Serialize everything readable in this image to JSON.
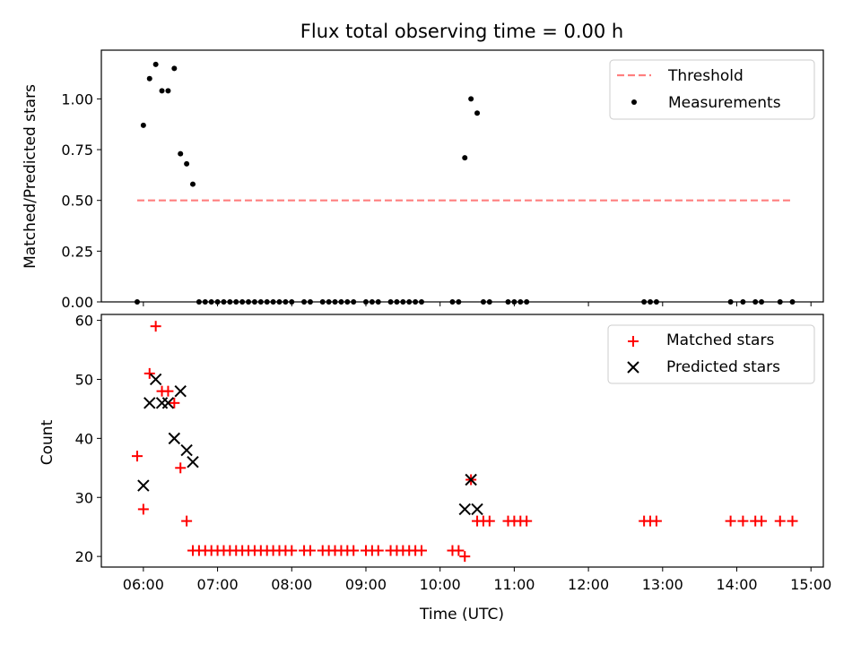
{
  "chart_data": [
    {
      "type": "scatter",
      "title": "Flux total observing time = 0.00 h",
      "xlabel": "",
      "ylabel": "Matched/Predicted stars",
      "xlim": [
        "05:26",
        "15:10"
      ],
      "ylim": [
        0,
        1.24
      ],
      "yticks": [
        0.0,
        0.25,
        0.5,
        0.75,
        1.0
      ],
      "ytick_labels": [
        "0.00",
        "0.25",
        "0.50",
        "0.75",
        "1.00"
      ],
      "legend_position": "top-right",
      "threshold": {
        "name": "Threshold",
        "y": 0.5,
        "x_range": [
          "05:55",
          "14:45"
        ],
        "color": "#ff7f7f",
        "style": "dashed"
      },
      "series": [
        {
          "name": "Measurements",
          "color": "#000000",
          "marker": "dot",
          "points": [
            [
              "05:55",
              0.0
            ],
            [
              "06:00",
              0.87
            ],
            [
              "06:05",
              1.1
            ],
            [
              "06:10",
              1.17
            ],
            [
              "06:15",
              1.04
            ],
            [
              "06:20",
              1.04
            ],
            [
              "06:25",
              1.15
            ],
            [
              "06:30",
              0.73
            ],
            [
              "06:35",
              0.68
            ],
            [
              "06:40",
              0.58
            ],
            [
              "06:45",
              0.0
            ],
            [
              "06:50",
              0.0
            ],
            [
              "06:55",
              0.0
            ],
            [
              "07:00",
              0.0
            ],
            [
              "07:05",
              0.0
            ],
            [
              "07:10",
              0.0
            ],
            [
              "07:15",
              0.0
            ],
            [
              "07:20",
              0.0
            ],
            [
              "07:25",
              0.0
            ],
            [
              "07:30",
              0.0
            ],
            [
              "07:35",
              0.0
            ],
            [
              "07:40",
              0.0
            ],
            [
              "07:45",
              0.0
            ],
            [
              "07:50",
              0.0
            ],
            [
              "07:55",
              0.0
            ],
            [
              "08:00",
              0.0
            ],
            [
              "08:10",
              0.0
            ],
            [
              "08:15",
              0.0
            ],
            [
              "08:25",
              0.0
            ],
            [
              "08:30",
              0.0
            ],
            [
              "08:35",
              0.0
            ],
            [
              "08:40",
              0.0
            ],
            [
              "08:45",
              0.0
            ],
            [
              "08:50",
              0.0
            ],
            [
              "09:00",
              0.0
            ],
            [
              "09:05",
              0.0
            ],
            [
              "09:10",
              0.0
            ],
            [
              "09:20",
              0.0
            ],
            [
              "09:25",
              0.0
            ],
            [
              "09:30",
              0.0
            ],
            [
              "09:35",
              0.0
            ],
            [
              "09:40",
              0.0
            ],
            [
              "09:45",
              0.0
            ],
            [
              "10:10",
              0.0
            ],
            [
              "10:15",
              0.0
            ],
            [
              "10:20",
              0.71
            ],
            [
              "10:25",
              1.0
            ],
            [
              "10:30",
              0.93
            ],
            [
              "10:35",
              0.0
            ],
            [
              "10:40",
              0.0
            ],
            [
              "10:55",
              0.0
            ],
            [
              "11:00",
              0.0
            ],
            [
              "11:05",
              0.0
            ],
            [
              "11:10",
              0.0
            ],
            [
              "12:45",
              0.0
            ],
            [
              "12:50",
              0.0
            ],
            [
              "12:55",
              0.0
            ],
            [
              "13:55",
              0.0
            ],
            [
              "14:05",
              0.0
            ],
            [
              "14:15",
              0.0
            ],
            [
              "14:20",
              0.0
            ],
            [
              "14:35",
              0.0
            ],
            [
              "14:45",
              0.0
            ]
          ]
        }
      ]
    },
    {
      "type": "scatter",
      "title": "",
      "xlabel": "Time (UTC)",
      "ylabel": "Count",
      "xlim": [
        "05:26",
        "15:10"
      ],
      "ylim": [
        18.2,
        61.0
      ],
      "yticks": [
        20,
        30,
        40,
        50,
        60
      ],
      "ytick_labels": [
        "20",
        "30",
        "40",
        "50",
        "60"
      ],
      "xticks": [
        "06:00",
        "07:00",
        "08:00",
        "09:00",
        "10:00",
        "11:00",
        "12:00",
        "13:00",
        "14:00",
        "15:00"
      ],
      "legend_position": "top-right",
      "series": [
        {
          "name": "Matched stars",
          "color": "#ff0000",
          "marker": "plus",
          "points": [
            [
              "05:55",
              37
            ],
            [
              "06:00",
              28
            ],
            [
              "06:05",
              51
            ],
            [
              "06:10",
              59
            ],
            [
              "06:15",
              48
            ],
            [
              "06:20",
              48
            ],
            [
              "06:25",
              46
            ],
            [
              "06:30",
              35
            ],
            [
              "06:35",
              26
            ],
            [
              "06:40",
              21
            ],
            [
              "06:45",
              21
            ],
            [
              "06:50",
              21
            ],
            [
              "06:55",
              21
            ],
            [
              "07:00",
              21
            ],
            [
              "07:05",
              21
            ],
            [
              "07:10",
              21
            ],
            [
              "07:15",
              21
            ],
            [
              "07:20",
              21
            ],
            [
              "07:25",
              21
            ],
            [
              "07:30",
              21
            ],
            [
              "07:35",
              21
            ],
            [
              "07:40",
              21
            ],
            [
              "07:45",
              21
            ],
            [
              "07:50",
              21
            ],
            [
              "07:55",
              21
            ],
            [
              "08:00",
              21
            ],
            [
              "08:10",
              21
            ],
            [
              "08:15",
              21
            ],
            [
              "08:25",
              21
            ],
            [
              "08:30",
              21
            ],
            [
              "08:35",
              21
            ],
            [
              "08:40",
              21
            ],
            [
              "08:45",
              21
            ],
            [
              "08:50",
              21
            ],
            [
              "09:00",
              21
            ],
            [
              "09:05",
              21
            ],
            [
              "09:10",
              21
            ],
            [
              "09:20",
              21
            ],
            [
              "09:25",
              21
            ],
            [
              "09:30",
              21
            ],
            [
              "09:35",
              21
            ],
            [
              "09:40",
              21
            ],
            [
              "09:45",
              21
            ],
            [
              "10:10",
              21
            ],
            [
              "10:15",
              21
            ],
            [
              "10:20",
              20
            ],
            [
              "10:25",
              33
            ],
            [
              "10:30",
              26
            ],
            [
              "10:35",
              26
            ],
            [
              "10:40",
              26
            ],
            [
              "10:55",
              26
            ],
            [
              "11:00",
              26
            ],
            [
              "11:05",
              26
            ],
            [
              "11:10",
              26
            ],
            [
              "12:45",
              26
            ],
            [
              "12:50",
              26
            ],
            [
              "12:55",
              26
            ],
            [
              "13:55",
              26
            ],
            [
              "14:05",
              26
            ],
            [
              "14:15",
              26
            ],
            [
              "14:20",
              26
            ],
            [
              "14:35",
              26
            ],
            [
              "14:45",
              26
            ]
          ]
        },
        {
          "name": "Predicted stars",
          "color": "#000000",
          "marker": "x",
          "points": [
            [
              "06:00",
              32
            ],
            [
              "06:05",
              46
            ],
            [
              "06:10",
              50
            ],
            [
              "06:15",
              46
            ],
            [
              "06:20",
              46
            ],
            [
              "06:25",
              40
            ],
            [
              "06:30",
              48
            ],
            [
              "06:35",
              38
            ],
            [
              "06:40",
              36
            ],
            [
              "10:20",
              28
            ],
            [
              "10:25",
              33
            ],
            [
              "10:30",
              28
            ]
          ]
        }
      ]
    }
  ]
}
